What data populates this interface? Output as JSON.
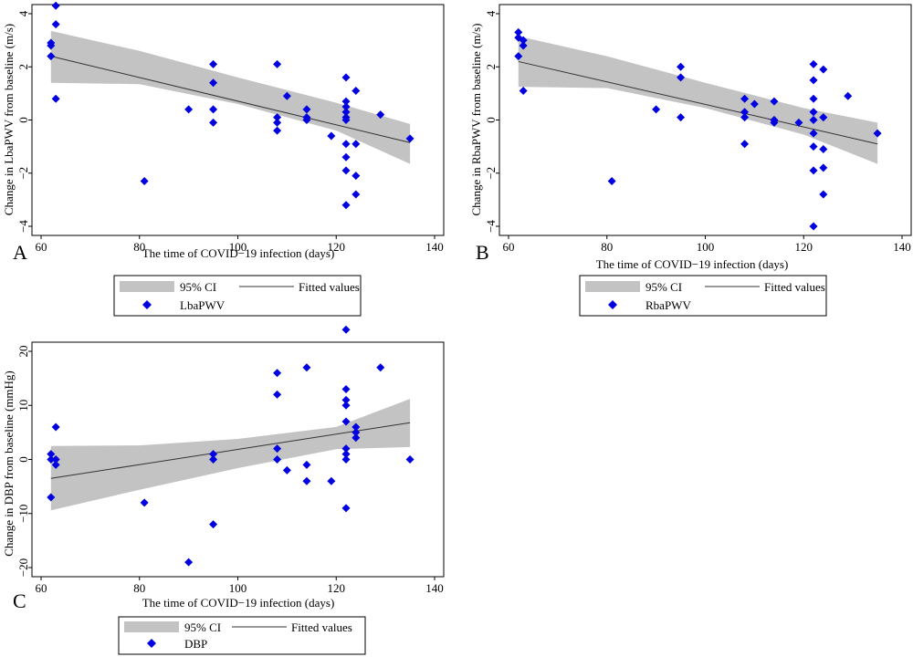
{
  "legend": {
    "ci_label": "95% CI",
    "fit_label": "Fitted values"
  },
  "colors": {
    "marker": "#0000E0",
    "ci_band": "#C3C3C3",
    "fit_line": "#333333",
    "axis": "#000000"
  },
  "chart_data": [
    {
      "panel_label": "A",
      "type": "scatter",
      "xlabel": "The time of COVID−19 infection (days)",
      "ylabel": "Change in LbaPWV from baseline (m/s)",
      "series_name": "LbaPWV",
      "xlim": [
        60,
        140
      ],
      "ylim": [
        -4,
        4
      ],
      "xticks": [
        60,
        80,
        100,
        120,
        140
      ],
      "yticks": [
        -4,
        -2,
        0,
        2,
        4
      ],
      "ytick_labels": [
        "−4",
        "−2",
        "0",
        "2",
        "4"
      ],
      "fit": {
        "x": [
          62,
          135
        ],
        "y": [
          2.4,
          -0.85
        ]
      },
      "ci_upper": {
        "x": [
          62,
          80,
          100,
          120,
          135
        ],
        "y": [
          3.35,
          2.6,
          1.6,
          0.65,
          -0.15
        ]
      },
      "ci_lower": {
        "x": [
          62,
          80,
          100,
          120,
          135
        ],
        "y": [
          1.4,
          1.35,
          0.6,
          -0.4,
          -1.65
        ]
      },
      "points": [
        [
          62,
          2.9
        ],
        [
          62,
          2.8
        ],
        [
          62,
          2.4
        ],
        [
          63,
          4.3
        ],
        [
          63,
          3.6
        ],
        [
          63,
          0.8
        ],
        [
          81,
          -2.3
        ],
        [
          90,
          0.4
        ],
        [
          95,
          2.1
        ],
        [
          95,
          1.4
        ],
        [
          95,
          0.4
        ],
        [
          95,
          -0.1
        ],
        [
          108,
          2.1
        ],
        [
          108,
          0.1
        ],
        [
          108,
          -0.1
        ],
        [
          108,
          -0.4
        ],
        [
          110,
          0.9
        ],
        [
          114,
          0.4
        ],
        [
          114,
          0.1
        ],
        [
          114,
          0
        ],
        [
          119,
          -0.6
        ],
        [
          122,
          1.6
        ],
        [
          122,
          0.7
        ],
        [
          122,
          0.5
        ],
        [
          122,
          0.3
        ],
        [
          122,
          0.1
        ],
        [
          122,
          0
        ],
        [
          122,
          -0.9
        ],
        [
          122,
          -1.4
        ],
        [
          122,
          -1.9
        ],
        [
          122,
          -3.2
        ],
        [
          124,
          1.1
        ],
        [
          124,
          -0.9
        ],
        [
          124,
          -2.1
        ],
        [
          124,
          -2.8
        ],
        [
          129,
          0.2
        ],
        [
          135,
          -0.7
        ]
      ]
    },
    {
      "panel_label": "B",
      "type": "scatter",
      "xlabel": "The time of COVID−19 infection (days)",
      "ylabel": "Change in RbaPWV from baseline (m/s)",
      "series_name": "RbaPWV",
      "xlim": [
        60,
        140
      ],
      "ylim": [
        -4,
        4
      ],
      "xticks": [
        60,
        80,
        100,
        120,
        140
      ],
      "yticks": [
        -4,
        -2,
        0,
        2,
        4
      ],
      "ytick_labels": [
        "−4",
        "−2",
        "0",
        "2",
        "4"
      ],
      "fit": {
        "x": [
          62,
          135
        ],
        "y": [
          2.2,
          -0.9
        ]
      },
      "ci_upper": {
        "x": [
          62,
          80,
          100,
          120,
          135
        ],
        "y": [
          3.15,
          2.4,
          1.4,
          0.45,
          -0.1
        ]
      },
      "ci_lower": {
        "x": [
          62,
          80,
          100,
          120,
          135
        ],
        "y": [
          1.25,
          1.2,
          0.45,
          -0.55,
          -1.65
        ]
      },
      "points": [
        [
          62,
          3.3
        ],
        [
          62,
          3.1
        ],
        [
          62,
          2.4
        ],
        [
          63,
          3.0
        ],
        [
          63,
          2.8
        ],
        [
          63,
          1.1
        ],
        [
          81,
          -2.3
        ],
        [
          90,
          0.4
        ],
        [
          95,
          2.0
        ],
        [
          95,
          1.6
        ],
        [
          95,
          0.1
        ],
        [
          108,
          0.8
        ],
        [
          108,
          0.3
        ],
        [
          108,
          0.1
        ],
        [
          108,
          -0.9
        ],
        [
          110,
          0.6
        ],
        [
          114,
          0.7
        ],
        [
          114,
          0
        ],
        [
          114,
          -0.1
        ],
        [
          119,
          -0.1
        ],
        [
          122,
          2.1
        ],
        [
          122,
          1.5
        ],
        [
          122,
          0.8
        ],
        [
          122,
          0.3
        ],
        [
          122,
          0
        ],
        [
          122,
          -0.5
        ],
        [
          122,
          -1.0
        ],
        [
          122,
          -1.9
        ],
        [
          122,
          -4.0
        ],
        [
          124,
          1.9
        ],
        [
          124,
          0.1
        ],
        [
          124,
          -1.1
        ],
        [
          124,
          -1.8
        ],
        [
          124,
          -2.8
        ],
        [
          129,
          0.9
        ],
        [
          135,
          -0.5
        ]
      ]
    },
    {
      "panel_label": "C",
      "type": "scatter",
      "xlabel": "The time of COVID−19 infection (days)",
      "ylabel": "Change in DBP from baseline (mmHg)",
      "series_name": "DBP",
      "xlim": [
        60,
        140
      ],
      "ylim": [
        -20,
        20
      ],
      "xticks": [
        60,
        80,
        100,
        120,
        140
      ],
      "yticks": [
        -20,
        -10,
        0,
        10,
        20
      ],
      "ytick_labels": [
        "−20",
        "−10",
        "0",
        "10",
        "20"
      ],
      "fit": {
        "x": [
          62,
          135
        ],
        "y": [
          -3.5,
          6.8
        ]
      },
      "ci_upper": {
        "x": [
          62,
          80,
          100,
          120,
          135
        ],
        "y": [
          2.5,
          2.6,
          3.8,
          6.0,
          11.2
        ]
      },
      "ci_lower": {
        "x": [
          62,
          80,
          100,
          120,
          135
        ],
        "y": [
          -9.4,
          -5.6,
          -1.6,
          1.9,
          2.3
        ]
      },
      "points": [
        [
          62,
          1
        ],
        [
          62,
          0
        ],
        [
          62,
          -7
        ],
        [
          63,
          6
        ],
        [
          63,
          -1
        ],
        [
          63,
          0
        ],
        [
          81,
          -8
        ],
        [
          90,
          -19
        ],
        [
          95,
          1
        ],
        [
          95,
          0
        ],
        [
          95,
          -12
        ],
        [
          108,
          16
        ],
        [
          108,
          12
        ],
        [
          108,
          2
        ],
        [
          108,
          0
        ],
        [
          110,
          -2
        ],
        [
          114,
          17
        ],
        [
          114,
          -1
        ],
        [
          114,
          -4
        ],
        [
          119,
          -4
        ],
        [
          122,
          24
        ],
        [
          122,
          13
        ],
        [
          122,
          11
        ],
        [
          122,
          10
        ],
        [
          122,
          7
        ],
        [
          122,
          2
        ],
        [
          122,
          1
        ],
        [
          122,
          0
        ],
        [
          122,
          -9
        ],
        [
          124,
          6
        ],
        [
          124,
          5
        ],
        [
          124,
          4
        ],
        [
          129,
          17
        ],
        [
          135,
          0
        ]
      ]
    }
  ]
}
